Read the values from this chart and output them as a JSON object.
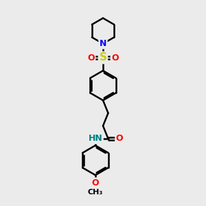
{
  "bg_color": "#ebebeb",
  "bond_color": "#000000",
  "bond_width": 1.8,
  "atom_colors": {
    "N": "#0000ff",
    "O": "#ff0000",
    "S": "#cccc00",
    "H": "#008080",
    "C": "#000000"
  },
  "font_size": 9,
  "fig_size": [
    3.0,
    3.0
  ],
  "dpi": 100
}
